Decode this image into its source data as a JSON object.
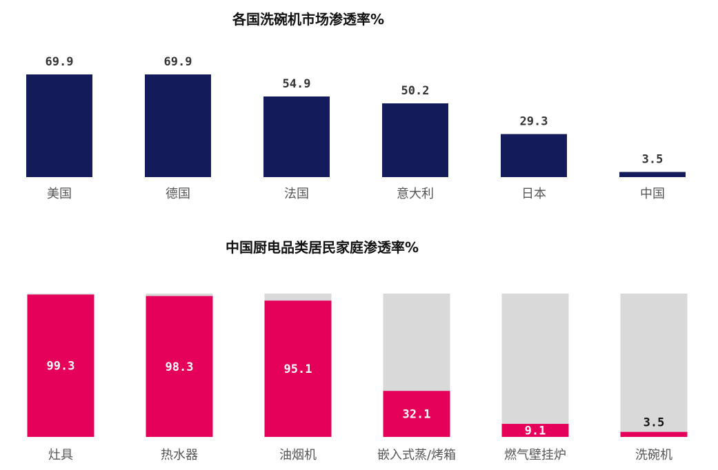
{
  "chart_data": [
    {
      "type": "bar",
      "title": "各国洗碗机市场渗透率%",
      "categories": [
        "美国",
        "德国",
        "法国",
        "意大利",
        "日本",
        "中国"
      ],
      "values": [
        69.9,
        69.9,
        54.9,
        50.2,
        29.3,
        3.5
      ],
      "value_labels": [
        "69.9",
        "69.9",
        "54.9",
        "50.2",
        "29.3",
        "3.5"
      ],
      "ylim": [
        0,
        69.9
      ],
      "grid": false,
      "legend": "none",
      "colors": {
        "bar": "#131B5A"
      }
    },
    {
      "type": "bar",
      "title": "中国厨电品类居民家庭渗透率%",
      "categories": [
        "灶具",
        "热水器",
        "油烟机",
        "嵌入式蒸/烤箱",
        "燃气壁挂炉",
        "洗碗机"
      ],
      "values": [
        99.3,
        98.3,
        95.1,
        32.1,
        9.1,
        3.5
      ],
      "value_labels": [
        "99.3",
        "98.3",
        "95.1",
        "32.1",
        "9.1",
        "3.5"
      ],
      "ylim": [
        0,
        100
      ],
      "grid": false,
      "legend": "none",
      "colors": {
        "bar": "#E5005A",
        "background_bar": "#D9D9D9"
      }
    }
  ]
}
